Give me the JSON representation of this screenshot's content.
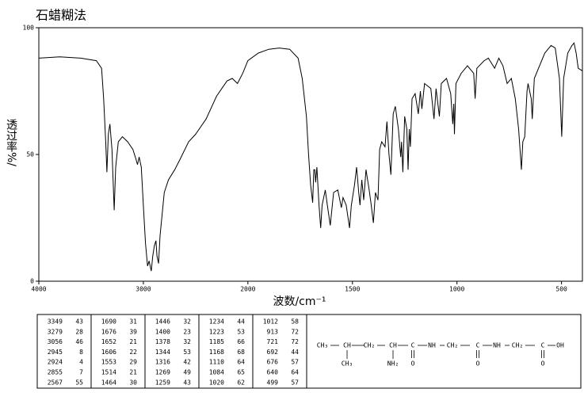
{
  "chart_data": {
    "type": "line",
    "title": "石蜡糊法",
    "x_label": "波数/cm⁻¹",
    "y_label": "透过率%/",
    "xlim": [
      4000,
      400
    ],
    "xsplit": 2000,
    "ylim": [
      0,
      100
    ],
    "xticks": [
      4000,
      3000,
      2000,
      1500,
      1000,
      500
    ],
    "yticks": [
      0,
      50,
      100
    ],
    "x": [
      4000,
      3800,
      3600,
      3450,
      3400,
      3380,
      3360,
      3349,
      3335,
      3320,
      3300,
      3279,
      3265,
      3240,
      3200,
      3150,
      3100,
      3070,
      3056,
      3040,
      3020,
      3000,
      2980,
      2960,
      2945,
      2935,
      2924,
      2910,
      2895,
      2880,
      2870,
      2855,
      2840,
      2800,
      2760,
      2700,
      2650,
      2567,
      2500,
      2400,
      2300,
      2200,
      2150,
      2100,
      2050,
      2000,
      1950,
      1900,
      1850,
      1800,
      1760,
      1740,
      1720,
      1710,
      1700,
      1690,
      1685,
      1680,
      1676,
      1670,
      1660,
      1652,
      1645,
      1630,
      1620,
      1606,
      1600,
      1590,
      1570,
      1553,
      1545,
      1530,
      1514,
      1505,
      1490,
      1480,
      1470,
      1464,
      1455,
      1446,
      1435,
      1420,
      1410,
      1400,
      1390,
      1378,
      1370,
      1360,
      1344,
      1335,
      1325,
      1316,
      1305,
      1295,
      1280,
      1269,
      1265,
      1259,
      1250,
      1240,
      1234,
      1228,
      1223,
      1215,
      1200,
      1185,
      1175,
      1168,
      1155,
      1140,
      1125,
      1110,
      1100,
      1084,
      1075,
      1050,
      1030,
      1020,
      1015,
      1012,
      1005,
      980,
      950,
      920,
      913,
      905,
      870,
      850,
      820,
      800,
      780,
      760,
      740,
      721,
      705,
      692,
      685,
      676,
      665,
      660,
      645,
      640,
      630,
      610,
      580,
      550,
      530,
      510,
      499,
      490,
      470,
      450,
      440,
      430,
      420,
      400
    ],
    "series": [
      {
        "color": "#000000",
        "values": [
          88,
          88.5,
          88,
          87,
          84,
          72,
          55,
          43,
          58,
          62,
          52,
          28,
          45,
          55,
          57,
          55,
          52,
          48,
          46,
          49,
          45,
          30,
          15,
          6,
          8,
          6,
          4,
          10,
          14,
          16,
          10,
          7,
          18,
          35,
          40,
          44,
          48,
          55,
          58,
          64,
          73,
          79,
          80,
          78,
          82,
          87,
          90,
          91.5,
          92,
          91.5,
          88,
          80,
          65,
          50,
          38,
          31,
          44,
          44,
          39,
          45,
          30,
          21,
          30,
          36,
          30,
          22,
          27,
          35,
          36,
          29,
          33,
          30,
          21,
          30,
          38,
          45,
          35,
          30,
          40,
          32,
          44,
          36,
          30,
          23,
          35,
          32,
          52,
          55,
          53,
          63,
          50,
          42,
          66,
          69,
          60,
          49,
          55,
          43,
          65,
          60,
          44,
          60,
          53,
          72,
          74,
          66,
          75,
          68,
          78,
          77,
          76,
          64,
          76,
          65,
          78,
          80,
          74,
          62,
          70,
          58,
          78,
          82,
          85,
          82,
          72,
          84,
          87,
          88,
          84,
          88,
          85,
          78,
          80,
          72,
          60,
          44,
          55,
          57,
          75,
          78,
          72,
          64,
          80,
          84,
          90,
          93,
          92,
          80,
          57,
          80,
          90,
          93,
          94,
          90,
          84,
          83
        ]
      }
    ]
  },
  "peaks": {
    "wavenumbers": [
      3349,
      3279,
      3056,
      2945,
      2924,
      2855,
      2567,
      1690,
      1676,
      1652,
      1606,
      1553,
      1514,
      1464,
      1446,
      1400,
      1378,
      1344,
      1316,
      1269,
      1259,
      1234,
      1223,
      1185,
      1168,
      1110,
      1084,
      1020,
      1012,
      913,
      721,
      692,
      676,
      640,
      499
    ],
    "transmittances": [
      43,
      28,
      46,
      8,
      4,
      7,
      55,
      31,
      39,
      21,
      22,
      29,
      21,
      30,
      32,
      23,
      32,
      53,
      42,
      49,
      43,
      44,
      53,
      66,
      68,
      64,
      65,
      62,
      58,
      72,
      72,
      44,
      57,
      64,
      57
    ]
  },
  "structure": {
    "chain": [
      "CH₃",
      "CH",
      "CH₂",
      "CH",
      "C",
      "NH",
      "CH₂",
      "C",
      "NH",
      "CH₂",
      "C",
      "OH"
    ],
    "substituents": [
      "CH₃",
      "NH₂",
      "O",
      "O",
      "O"
    ]
  }
}
